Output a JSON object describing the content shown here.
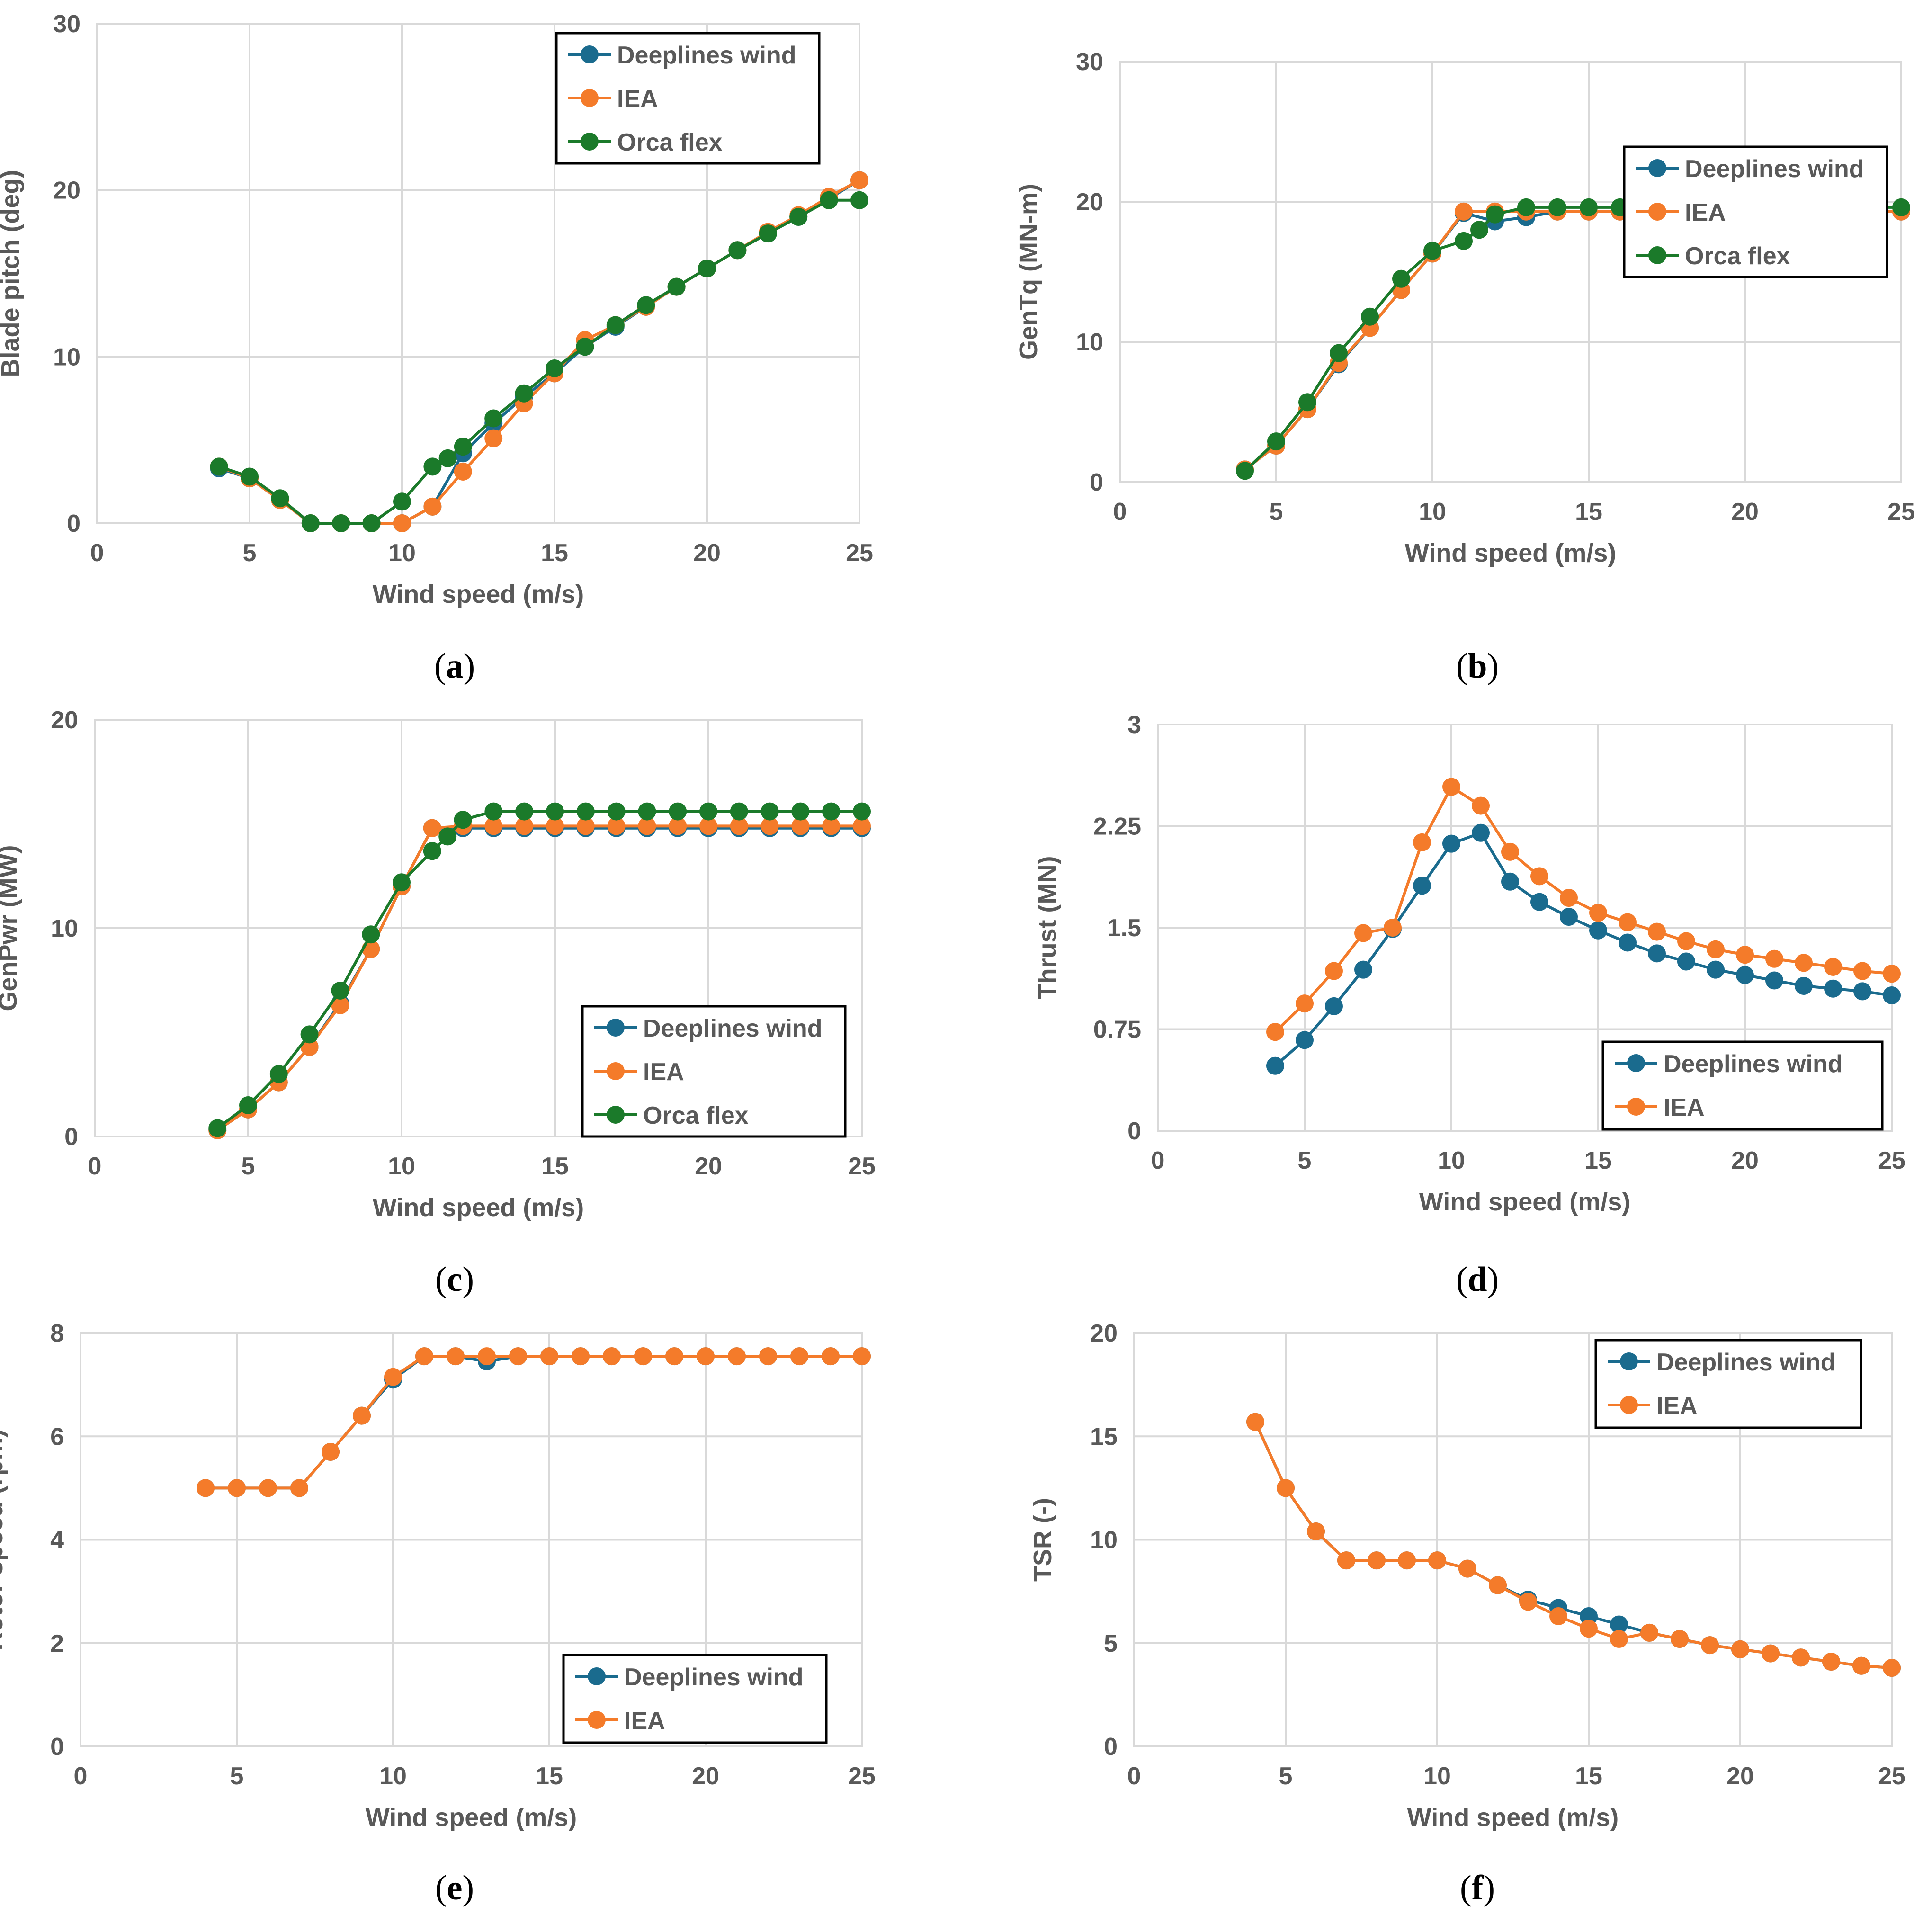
{
  "colors": {
    "deeplines": "#1a6b8e",
    "iea": "#f47b2a",
    "orcaflex": "#1b7a2a",
    "grid": "#d9d9d9",
    "axis_text": "#595959"
  },
  "legend_labels": {
    "deeplines": "Deeplines wind",
    "iea": "IEA",
    "orcaflex": "Orca flex"
  },
  "captions": {
    "a": "a",
    "b": "b",
    "c": "c",
    "d": "d",
    "e": "e",
    "f": "f"
  },
  "chart_data": [
    {
      "id": "a",
      "type": "line",
      "title": "",
      "xlabel": "Wind speed (m/s)",
      "ylabel": "Blade pitch (deg)",
      "xlim": [
        0,
        25
      ],
      "ylim": [
        0,
        30
      ],
      "xticks": [
        0,
        5,
        10,
        15,
        20,
        25
      ],
      "yticks": [
        0,
        10,
        20,
        30
      ],
      "ytick_labels": [
        "0",
        "10",
        "20",
        "30"
      ],
      "grid": true,
      "legend_position": "top-right",
      "series": [
        {
          "key": "deeplines",
          "name": "Deeplines wind",
          "x": [
            4,
            5,
            6,
            7,
            8,
            9,
            10,
            11,
            12,
            13,
            14,
            15,
            16,
            17,
            18,
            19,
            20,
            21,
            22,
            23,
            24,
            25
          ],
          "y": [
            3.3,
            2.7,
            1.4,
            0,
            0,
            0,
            0,
            1.0,
            4.2,
            6.0,
            7.6,
            9.0,
            10.6,
            11.8,
            13.0,
            14.2,
            15.3,
            16.4,
            17.4,
            18.4,
            19.5,
            20.6
          ]
        },
        {
          "key": "iea",
          "name": "IEA",
          "x": [
            4,
            5,
            6,
            7,
            8,
            9,
            10,
            11,
            12,
            13,
            14,
            15,
            16,
            17,
            18,
            19,
            20,
            21,
            22,
            23,
            24,
            25
          ],
          "y": [
            3.4,
            2.7,
            1.4,
            0,
            0,
            0,
            0,
            1.0,
            3.1,
            5.1,
            7.2,
            9.0,
            11.0,
            11.9,
            13.0,
            14.2,
            15.3,
            16.4,
            17.5,
            18.5,
            19.6,
            20.6
          ]
        },
        {
          "key": "orcaflex",
          "name": "Orca flex",
          "x": [
            4,
            5,
            6,
            7,
            8,
            9,
            10,
            11,
            11.5,
            12,
            13,
            14,
            15,
            16,
            17,
            18,
            19,
            20,
            21,
            22,
            23,
            24,
            25
          ],
          "y": [
            3.4,
            2.8,
            1.5,
            0,
            0,
            0,
            1.3,
            3.4,
            3.9,
            4.6,
            6.3,
            7.8,
            9.3,
            10.6,
            11.9,
            13.1,
            14.2,
            15.3,
            16.4,
            17.4,
            18.4,
            19.4,
            19.4
          ]
        }
      ]
    },
    {
      "id": "b",
      "type": "line",
      "title": "",
      "xlabel": "Wind speed (m/s)",
      "ylabel": "GenTq (MN-m)",
      "xlim": [
        0,
        25
      ],
      "ylim": [
        0,
        30
      ],
      "xticks": [
        0,
        5,
        10,
        15,
        20,
        25
      ],
      "yticks": [
        0,
        10,
        20,
        30
      ],
      "ytick_labels": [
        "0",
        "10",
        "20",
        "30"
      ],
      "grid": true,
      "legend_position": "bottom-right",
      "series": [
        {
          "key": "deeplines",
          "name": "Deeplines wind",
          "x": [
            4,
            5,
            6,
            7,
            8,
            9,
            10,
            11,
            12,
            13,
            14,
            15,
            16,
            17,
            18,
            19,
            20,
            21,
            22,
            23,
            24,
            25
          ],
          "y": [
            0.9,
            2.6,
            5.2,
            8.4,
            11.0,
            13.7,
            16.3,
            19.2,
            18.6,
            18.9,
            19.3,
            19.3,
            19.3,
            19.3,
            19.3,
            19.3,
            19.3,
            19.3,
            19.3,
            19.3,
            19.3,
            19.3
          ]
        },
        {
          "key": "iea",
          "name": "IEA",
          "x": [
            4,
            5,
            6,
            7,
            8,
            9,
            10,
            11,
            12,
            13,
            14,
            15,
            16,
            17,
            18,
            19,
            20,
            21,
            22,
            23,
            24,
            25
          ],
          "y": [
            0.9,
            2.6,
            5.2,
            8.5,
            11.0,
            13.7,
            16.3,
            19.3,
            19.3,
            19.3,
            19.3,
            19.3,
            19.3,
            19.3,
            19.3,
            19.3,
            19.3,
            19.3,
            19.3,
            19.3,
            19.3,
            19.3
          ]
        },
        {
          "key": "orcaflex",
          "name": "Orca flex",
          "x": [
            4,
            5,
            6,
            7,
            8,
            9,
            10,
            11,
            11.5,
            12,
            13,
            14,
            15,
            16,
            17,
            18,
            19,
            20,
            21,
            22,
            23,
            24,
            25
          ],
          "y": [
            0.8,
            2.9,
            5.7,
            9.2,
            11.8,
            14.5,
            16.5,
            17.2,
            18.0,
            19.1,
            19.6,
            19.6,
            19.6,
            19.6,
            19.6,
            19.6,
            19.6,
            19.6,
            19.6,
            19.6,
            19.6,
            19.6,
            19.6
          ]
        }
      ]
    },
    {
      "id": "c",
      "type": "line",
      "title": "",
      "xlabel": "Wind speed (m/s)",
      "ylabel": "GenPwr (MW)",
      "xlim": [
        0,
        25
      ],
      "ylim": [
        0,
        20
      ],
      "xticks": [
        0,
        5,
        10,
        15,
        20,
        25
      ],
      "yticks": [
        0,
        10,
        20
      ],
      "ytick_labels": [
        "0",
        "10",
        "20"
      ],
      "grid": true,
      "legend_position": "bottom-right",
      "series": [
        {
          "key": "deeplines",
          "name": "Deeplines wind",
          "x": [
            4,
            5,
            6,
            7,
            8,
            9,
            10,
            11,
            12,
            13,
            14,
            15,
            16,
            17,
            18,
            19,
            20,
            21,
            22,
            23,
            24,
            25
          ],
          "y": [
            0.3,
            1.3,
            2.6,
            4.3,
            6.4,
            9.0,
            12.0,
            14.8,
            14.8,
            14.8,
            14.8,
            14.8,
            14.8,
            14.8,
            14.8,
            14.8,
            14.8,
            14.8,
            14.8,
            14.8,
            14.8,
            14.8
          ]
        },
        {
          "key": "iea",
          "name": "IEA",
          "x": [
            4,
            5,
            6,
            7,
            8,
            9,
            10,
            11,
            12,
            13,
            14,
            15,
            16,
            17,
            18,
            19,
            20,
            21,
            22,
            23,
            24,
            25
          ],
          "y": [
            0.3,
            1.3,
            2.6,
            4.3,
            6.3,
            9.0,
            12.0,
            14.8,
            14.9,
            14.9,
            14.9,
            14.9,
            14.9,
            14.9,
            14.9,
            14.9,
            14.9,
            14.9,
            14.9,
            14.9,
            14.9,
            14.9
          ]
        },
        {
          "key": "orcaflex",
          "name": "Orca flex",
          "x": [
            4,
            5,
            6,
            7,
            8,
            9,
            10,
            11,
            11.5,
            12,
            13,
            14,
            15,
            16,
            17,
            18,
            19,
            20,
            21,
            22,
            23,
            24,
            25
          ],
          "y": [
            0.4,
            1.5,
            3.0,
            4.9,
            7.0,
            9.7,
            12.2,
            13.7,
            14.4,
            15.2,
            15.6,
            15.6,
            15.6,
            15.6,
            15.6,
            15.6,
            15.6,
            15.6,
            15.6,
            15.6,
            15.6,
            15.6,
            15.6
          ]
        }
      ]
    },
    {
      "id": "d",
      "type": "line",
      "title": "",
      "xlabel": "Wind speed (m/s)",
      "ylabel": "Thrust (MN)",
      "xlim": [
        0,
        25
      ],
      "ylim": [
        0,
        3
      ],
      "xticks": [
        0,
        5,
        10,
        15,
        20,
        25
      ],
      "yticks": [
        0,
        0.75,
        1.5,
        2.25,
        3
      ],
      "ytick_labels": [
        "0",
        "0.75",
        "1.5",
        "2.25",
        "3"
      ],
      "grid": true,
      "legend_position": "bottom-right",
      "series": [
        {
          "key": "deeplines",
          "name": "Deeplines wind",
          "x": [
            4,
            5,
            6,
            7,
            8,
            9,
            10,
            11,
            12,
            13,
            14,
            15,
            16,
            17,
            18,
            19,
            20,
            21,
            22,
            23,
            24,
            25
          ],
          "y": [
            0.48,
            0.67,
            0.92,
            1.19,
            1.49,
            1.81,
            2.12,
            2.2,
            1.84,
            1.69,
            1.58,
            1.48,
            1.39,
            1.31,
            1.25,
            1.19,
            1.15,
            1.11,
            1.07,
            1.05,
            1.03,
            1.0
          ]
        },
        {
          "key": "iea",
          "name": "IEA",
          "x": [
            4,
            5,
            6,
            7,
            8,
            9,
            10,
            11,
            12,
            13,
            14,
            15,
            16,
            17,
            18,
            19,
            20,
            21,
            22,
            23,
            24,
            25
          ],
          "y": [
            0.73,
            0.94,
            1.18,
            1.46,
            1.5,
            2.13,
            2.54,
            2.4,
            2.06,
            1.88,
            1.72,
            1.61,
            1.54,
            1.47,
            1.4,
            1.34,
            1.3,
            1.27,
            1.24,
            1.21,
            1.18,
            1.16
          ]
        }
      ]
    },
    {
      "id": "e",
      "type": "line",
      "title": "",
      "xlabel": "Wind speed (m/s)",
      "ylabel": "Rotor speed (rpm)",
      "xlim": [
        0,
        25
      ],
      "ylim": [
        0,
        8
      ],
      "xticks": [
        0,
        5,
        10,
        15,
        20,
        25
      ],
      "yticks": [
        0,
        2,
        4,
        6,
        8
      ],
      "ytick_labels": [
        "0",
        "2",
        "4",
        "6",
        "8"
      ],
      "grid": true,
      "legend_position": "bottom-right",
      "series": [
        {
          "key": "deeplines",
          "name": "Deeplines wind",
          "x": [
            4,
            5,
            6,
            7,
            8,
            9,
            10,
            11,
            12,
            13,
            14,
            15,
            16,
            17,
            18,
            19,
            20,
            21,
            22,
            23,
            24,
            25
          ],
          "y": [
            5.0,
            5.0,
            5.0,
            5.0,
            5.7,
            6.4,
            7.1,
            7.55,
            7.55,
            7.45,
            7.55,
            7.55,
            7.55,
            7.55,
            7.55,
            7.55,
            7.55,
            7.55,
            7.55,
            7.55,
            7.55,
            7.55
          ]
        },
        {
          "key": "iea",
          "name": "IEA",
          "x": [
            4,
            5,
            6,
            7,
            8,
            9,
            10,
            11,
            12,
            13,
            14,
            15,
            16,
            17,
            18,
            19,
            20,
            21,
            22,
            23,
            24,
            25
          ],
          "y": [
            5.0,
            5.0,
            5.0,
            5.0,
            5.7,
            6.4,
            7.15,
            7.55,
            7.55,
            7.55,
            7.55,
            7.55,
            7.55,
            7.55,
            7.55,
            7.55,
            7.55,
            7.55,
            7.55,
            7.55,
            7.55,
            7.55
          ]
        }
      ]
    },
    {
      "id": "f",
      "type": "line",
      "title": "",
      "xlabel": "Wind speed (m/s)",
      "ylabel": "TSR (-)",
      "xlim": [
        0,
        25
      ],
      "ylim": [
        0,
        20
      ],
      "xticks": [
        0,
        5,
        10,
        15,
        20,
        25
      ],
      "yticks": [
        0,
        5,
        10,
        15,
        20
      ],
      "ytick_labels": [
        "0",
        "5",
        "10",
        "15",
        "20"
      ],
      "grid": true,
      "legend_position": "top-right",
      "series": [
        {
          "key": "deeplines",
          "name": "Deeplines wind",
          "x": [
            4,
            5,
            6,
            7,
            8,
            9,
            10,
            11,
            12,
            13,
            14,
            15,
            16,
            17,
            18,
            19,
            20,
            21,
            22,
            23,
            24,
            25
          ],
          "y": [
            15.7,
            12.5,
            10.4,
            9.0,
            9.0,
            9.0,
            9.0,
            8.6,
            7.8,
            7.1,
            6.7,
            6.3,
            5.9,
            5.5,
            5.2,
            4.9,
            4.7,
            4.5,
            4.3,
            4.1,
            3.9,
            3.8
          ]
        },
        {
          "key": "iea",
          "name": "IEA",
          "x": [
            4,
            5,
            6,
            7,
            8,
            9,
            10,
            11,
            12,
            13,
            14,
            15,
            16,
            17,
            18,
            19,
            20,
            21,
            22,
            23,
            24,
            25
          ],
          "y": [
            15.7,
            12.5,
            10.4,
            9.0,
            9.0,
            9.0,
            9.0,
            8.6,
            7.8,
            7.0,
            6.3,
            5.7,
            5.2,
            5.5,
            5.2,
            4.9,
            4.7,
            4.5,
            4.3,
            4.1,
            3.9,
            3.8
          ]
        }
      ]
    }
  ]
}
